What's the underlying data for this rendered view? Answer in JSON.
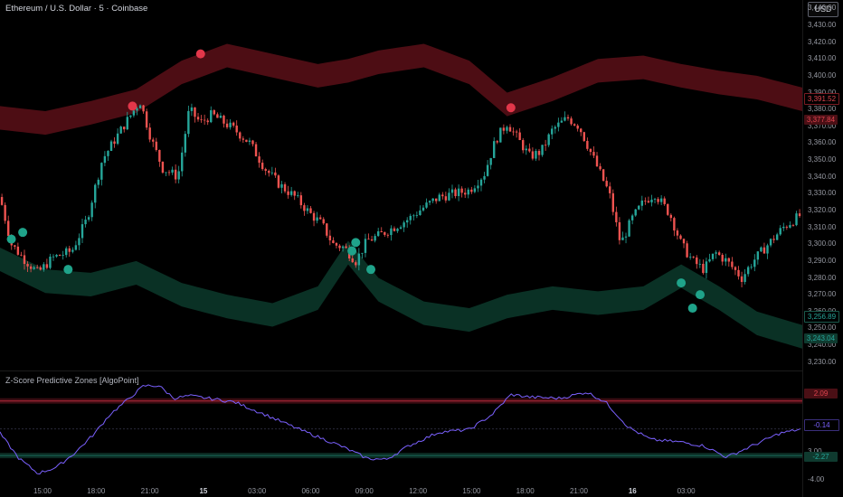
{
  "header": {
    "symbol_title": "Ethereum / U.S. Dollar · 5 · Coinbase",
    "currency": "USD"
  },
  "indicator": {
    "title": "Z-Score Predictive Zones [AlgoPoint]"
  },
  "colors": {
    "background": "#000000",
    "candle_up": "#26a69a",
    "candle_down": "#ef5350",
    "upper_zone": "#5a0f18",
    "lower_zone": "#0c3a2c",
    "signal_up": "#e2374a",
    "signal_down": "#1fa38a",
    "zscore_line": "#7b61ff"
  },
  "price_axis": {
    "ticks": [
      "3,440.00",
      "3,430.00",
      "3,420.00",
      "3,410.00",
      "3,400.00",
      "3,390.00",
      "3,380.00",
      "3,370.00",
      "3,360.00",
      "3,350.00",
      "3,340.00",
      "3,330.00",
      "3,320.00",
      "3,310.00",
      "3,300.00",
      "3,290.00",
      "3,280.00",
      "3,270.00",
      "3,260.00",
      "3,250.00",
      "3,240.00",
      "3,230.00"
    ],
    "badges": {
      "upper_outer": "3,391.52",
      "upper_inner": "3,377.84",
      "lower_inner": "3,256.89",
      "lower_outer": "3,243.04"
    }
  },
  "indicator_axis": {
    "ticks": [
      "3.00",
      "-2.00",
      "-4.00"
    ],
    "badges": {
      "upper": "2.09",
      "current": "-0.14",
      "lower": "-2.27"
    }
  },
  "time_axis": {
    "ticks": [
      {
        "label": "15:00",
        "bold": false
      },
      {
        "label": "18:00",
        "bold": false
      },
      {
        "label": "21:00",
        "bold": false
      },
      {
        "label": "15",
        "bold": true
      },
      {
        "label": "03:00",
        "bold": false
      },
      {
        "label": "06:00",
        "bold": false
      },
      {
        "label": "09:00",
        "bold": false
      },
      {
        "label": "12:00",
        "bold": false
      },
      {
        "label": "15:00",
        "bold": false
      },
      {
        "label": "18:00",
        "bold": false
      },
      {
        "label": "21:00",
        "bold": false
      },
      {
        "label": "16",
        "bold": true
      },
      {
        "label": "03:00",
        "bold": false
      }
    ]
  },
  "chart_data": {
    "type": "candlestick",
    "ylim": [
      3225,
      3445
    ],
    "price_path": [
      {
        "t": 0,
        "p": 3328
      },
      {
        "t": 3,
        "p": 3300
      },
      {
        "t": 6,
        "p": 3292
      },
      {
        "t": 10,
        "p": 3283
      },
      {
        "t": 14,
        "p": 3292
      },
      {
        "t": 19,
        "p": 3296
      },
      {
        "t": 23,
        "p": 3315
      },
      {
        "t": 27,
        "p": 3350
      },
      {
        "t": 32,
        "p": 3368
      },
      {
        "t": 37,
        "p": 3385
      },
      {
        "t": 40,
        "p": 3362
      },
      {
        "t": 43,
        "p": 3345
      },
      {
        "t": 47,
        "p": 3340
      },
      {
        "t": 50,
        "p": 3380
      },
      {
        "t": 53,
        "p": 3372
      },
      {
        "t": 56,
        "p": 3377
      },
      {
        "t": 62,
        "p": 3368
      },
      {
        "t": 66,
        "p": 3360
      },
      {
        "t": 70,
        "p": 3345
      },
      {
        "t": 74,
        "p": 3335
      },
      {
        "t": 78,
        "p": 3328
      },
      {
        "t": 82,
        "p": 3318
      },
      {
        "t": 85,
        "p": 3312
      },
      {
        "t": 88,
        "p": 3300
      },
      {
        "t": 91,
        "p": 3298
      },
      {
        "t": 94,
        "p": 3290
      },
      {
        "t": 97,
        "p": 3302
      },
      {
        "t": 100,
        "p": 3305
      },
      {
        "t": 104,
        "p": 3310
      },
      {
        "t": 108,
        "p": 3315
      },
      {
        "t": 112,
        "p": 3322
      },
      {
        "t": 116,
        "p": 3328
      },
      {
        "t": 120,
        "p": 3330
      },
      {
        "t": 124,
        "p": 3332
      },
      {
        "t": 128,
        "p": 3342
      },
      {
        "t": 131,
        "p": 3362
      },
      {
        "t": 134,
        "p": 3372
      },
      {
        "t": 137,
        "p": 3362
      },
      {
        "t": 140,
        "p": 3352
      },
      {
        "t": 143,
        "p": 3355
      },
      {
        "t": 146,
        "p": 3368
      },
      {
        "t": 150,
        "p": 3375
      },
      {
        "t": 153,
        "p": 3370
      },
      {
        "t": 157,
        "p": 3350
      },
      {
        "t": 161,
        "p": 3330
      },
      {
        "t": 164,
        "p": 3300
      },
      {
        "t": 167,
        "p": 3315
      },
      {
        "t": 170,
        "p": 3325
      },
      {
        "t": 173,
        "p": 3330
      },
      {
        "t": 177,
        "p": 3318
      },
      {
        "t": 180,
        "p": 3300
      },
      {
        "t": 183,
        "p": 3290
      },
      {
        "t": 186,
        "p": 3285
      },
      {
        "t": 189,
        "p": 3295
      },
      {
        "t": 192,
        "p": 3290
      },
      {
        "t": 196,
        "p": 3280
      },
      {
        "t": 199,
        "p": 3290
      },
      {
        "t": 203,
        "p": 3300
      },
      {
        "t": 207,
        "p": 3310
      },
      {
        "t": 212,
        "p": 3318
      }
    ],
    "band": [
      {
        "t": 0,
        "up": 3375,
        "lo": 3298
      },
      {
        "t": 12,
        "up": 3372,
        "lo": 3285
      },
      {
        "t": 24,
        "up": 3378,
        "lo": 3283
      },
      {
        "t": 36,
        "up": 3385,
        "lo": 3290
      },
      {
        "t": 48,
        "up": 3402,
        "lo": 3277
      },
      {
        "t": 60,
        "up": 3412,
        "lo": 3270
      },
      {
        "t": 72,
        "up": 3406,
        "lo": 3265
      },
      {
        "t": 84,
        "up": 3400,
        "lo": 3275
      },
      {
        "t": 92,
        "up": 3403,
        "lo": 3302
      },
      {
        "t": 100,
        "up": 3408,
        "lo": 3280
      },
      {
        "t": 112,
        "up": 3412,
        "lo": 3266
      },
      {
        "t": 124,
        "up": 3402,
        "lo": 3262
      },
      {
        "t": 134,
        "up": 3383,
        "lo": 3270
      },
      {
        "t": 146,
        "up": 3392,
        "lo": 3275
      },
      {
        "t": 158,
        "up": 3403,
        "lo": 3272
      },
      {
        "t": 170,
        "up": 3405,
        "lo": 3275
      },
      {
        "t": 180,
        "up": 3400,
        "lo": 3288
      },
      {
        "t": 190,
        "up": 3396,
        "lo": 3275
      },
      {
        "t": 200,
        "up": 3393,
        "lo": 3260
      },
      {
        "t": 212,
        "up": 3386,
        "lo": 3252
      }
    ],
    "signals_sell": [
      {
        "t": 35,
        "p": 3382
      },
      {
        "t": 53,
        "p": 3413
      },
      {
        "t": 135,
        "p": 3381
      }
    ],
    "signals_buy": [
      {
        "t": 3,
        "p": 3303
      },
      {
        "t": 6,
        "p": 3307
      },
      {
        "t": 18,
        "p": 3285
      },
      {
        "t": 93,
        "p": 3296
      },
      {
        "t": 94,
        "p": 3301
      },
      {
        "t": 98,
        "p": 3285
      },
      {
        "t": 180,
        "p": 3277
      },
      {
        "t": 183,
        "p": 3262
      },
      {
        "t": 185,
        "p": 3270
      }
    ],
    "zscore": {
      "ylim": [
        -4.5,
        3.8
      ],
      "upper_level": 2.09,
      "lower_level": -2.27,
      "path": [
        {
          "t": 0,
          "z": -0.5
        },
        {
          "t": 5,
          "z": -2.5
        },
        {
          "t": 10,
          "z": -3.7
        },
        {
          "t": 15,
          "z": -3.2
        },
        {
          "t": 20,
          "z": -2.0
        },
        {
          "t": 25,
          "z": -0.5
        },
        {
          "t": 29,
          "z": 1.0
        },
        {
          "t": 33,
          "z": 2.0
        },
        {
          "t": 38,
          "z": 3.3
        },
        {
          "t": 42,
          "z": 3.3
        },
        {
          "t": 46,
          "z": 2.3
        },
        {
          "t": 50,
          "z": 2.5
        },
        {
          "t": 55,
          "z": 2.3
        },
        {
          "t": 62,
          "z": 2.0
        },
        {
          "t": 70,
          "z": 1.0
        },
        {
          "t": 80,
          "z": -0.3
        },
        {
          "t": 90,
          "z": -1.5
        },
        {
          "t": 97,
          "z": -2.5
        },
        {
          "t": 102,
          "z": -2.6
        },
        {
          "t": 108,
          "z": -1.5
        },
        {
          "t": 116,
          "z": -0.4
        },
        {
          "t": 124,
          "z": -0.2
        },
        {
          "t": 130,
          "z": 1.0
        },
        {
          "t": 135,
          "z": 2.6
        },
        {
          "t": 140,
          "z": 2.4
        },
        {
          "t": 148,
          "z": 2.3
        },
        {
          "t": 155,
          "z": 2.8
        },
        {
          "t": 160,
          "z": 2.0
        },
        {
          "t": 166,
          "z": 0.0
        },
        {
          "t": 172,
          "z": -1.0
        },
        {
          "t": 180,
          "z": -1.2
        },
        {
          "t": 186,
          "z": -1.5
        },
        {
          "t": 192,
          "z": -2.4
        },
        {
          "t": 198,
          "z": -1.6
        },
        {
          "t": 206,
          "z": -0.5
        },
        {
          "t": 212,
          "z": -0.14
        }
      ]
    }
  }
}
